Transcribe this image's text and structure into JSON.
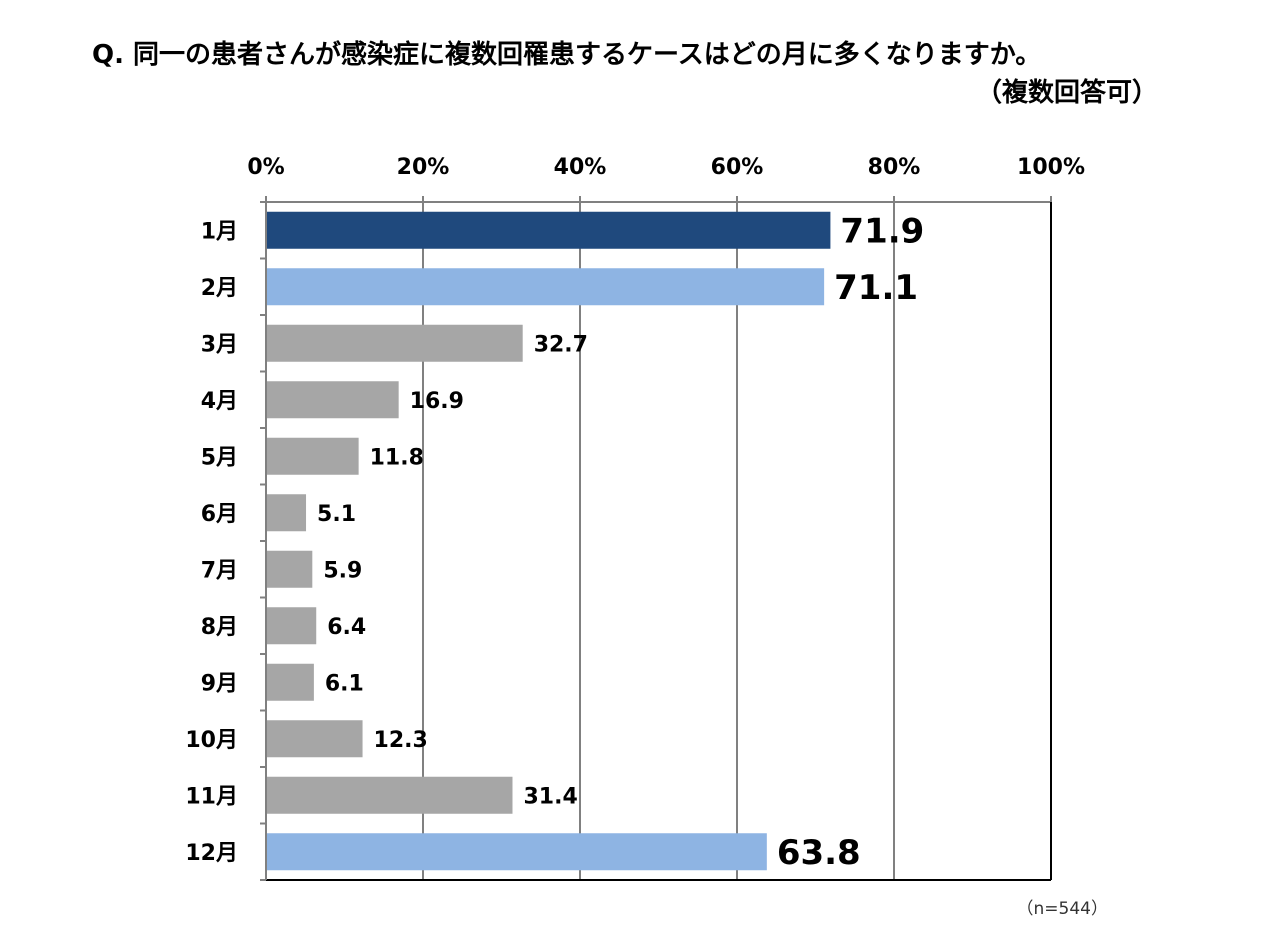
{
  "title": "Q.  同一の患者さんが感染症に複数回罹患するケースはどの月に多くなりますか。",
  "subtitle": "（複数回答可）",
  "note": "（n=544）",
  "colors": {
    "highlight_dark": "#1f497d",
    "highlight_light": "#8eb4e3",
    "normal": "#a6a6a6",
    "grid": "#808080"
  },
  "chart_data": {
    "type": "bar",
    "orientation": "horizontal",
    "categories": [
      "1月",
      "2月",
      "3月",
      "4月",
      "5月",
      "6月",
      "7月",
      "8月",
      "9月",
      "10月",
      "11月",
      "12月"
    ],
    "values": [
      71.9,
      71.1,
      32.7,
      16.9,
      11.8,
      5.1,
      5.9,
      6.4,
      6.1,
      12.3,
      31.4,
      63.8
    ],
    "value_labels": [
      "71.9",
      "71.1",
      "32.7",
      "16.9",
      "11.8",
      "5.1",
      "5.9",
      "6.4",
      "6.1",
      "12.3",
      "31.4",
      "63.8"
    ],
    "bar_styles": [
      "dark",
      "light",
      "normal",
      "normal",
      "normal",
      "normal",
      "normal",
      "normal",
      "normal",
      "normal",
      "normal",
      "light"
    ],
    "emphasized_labels": [
      true,
      true,
      false,
      false,
      false,
      false,
      false,
      false,
      false,
      false,
      false,
      true
    ],
    "xlim": [
      0,
      100
    ],
    "xticks": [
      "0%",
      "20%",
      "40%",
      "60%",
      "80%",
      "100%"
    ],
    "x_axis_position": "top",
    "grid": true,
    "legend": "none",
    "xlabel": "",
    "ylabel": ""
  }
}
